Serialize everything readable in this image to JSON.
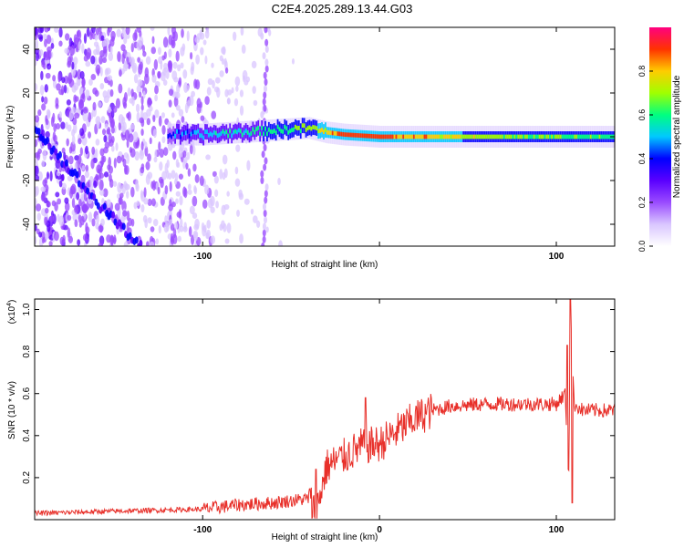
{
  "title": "C2E4.2025.289.13.44.G03",
  "chart_data": [
    {
      "type": "heatmap",
      "xlabel": "Height of straight line (km)",
      "ylabel": "Frequency (Hz)",
      "xlim": [
        -195,
        133
      ],
      "ylim": [
        -50,
        50
      ],
      "xticks": [
        -100,
        0,
        100
      ],
      "xtick_labels": [
        "-100",
        "",
        "100"
      ],
      "yticks": [
        -40,
        -20,
        0,
        20,
        40
      ],
      "ytick_labels": [
        "-40",
        "-20",
        "0",
        "20",
        "40"
      ],
      "colorbar": {
        "label": "Normalized spectral amplitude",
        "range": [
          0.0,
          1.0
        ],
        "ticks": [
          0.0,
          0.2,
          0.4,
          0.6,
          0.8
        ],
        "tick_labels": [
          "0.0",
          "0.2",
          "0.4",
          "0.6",
          "0.8"
        ],
        "colors": [
          "#ffffff",
          "#d9c6ff",
          "#9a4bff",
          "#5a00ff",
          "#0000ff",
          "#00c8ff",
          "#00ff80",
          "#a0ff00",
          "#ffcc00",
          "#ff3300",
          "#ff0080"
        ]
      },
      "ridge": {
        "x": [
          -120,
          -100,
          -80,
          -60,
          -40,
          -30,
          -20,
          0,
          20,
          60,
          100,
          133
        ],
        "frequency": [
          1,
          1,
          2,
          3,
          4,
          2,
          1,
          0,
          0,
          0,
          0,
          0
        ],
        "amplitude": [
          0.4,
          0.5,
          0.55,
          0.6,
          0.7,
          0.8,
          0.9,
          0.9,
          0.85,
          0.7,
          0.65,
          0.6
        ]
      },
      "diagonal_track": {
        "x": [
          -195,
          -175,
          -160,
          -145,
          -135
        ],
        "frequency": [
          5,
          -15,
          -30,
          -42,
          -50
        ]
      },
      "noise_extent_x": [
        -195,
        -40
      ],
      "vertical_streak_x": [
        -65
      ]
    },
    {
      "type": "line",
      "xlabel": "Height of straight line (km)",
      "ylabel": "SNR (10 * v/v)",
      "y_multiplier": "(x10",
      "y_exponent": "4",
      "y_multiplier_close": ")",
      "xlim": [
        -195,
        133
      ],
      "ylim": [
        0,
        1.05
      ],
      "xticks": [
        -100,
        0,
        100
      ],
      "xtick_labels": [
        "-100",
        "0",
        "100"
      ],
      "yticks": [
        0.2,
        0.4,
        0.6,
        0.8,
        1.0
      ],
      "ytick_labels": [
        "0.2",
        "0.4",
        "0.6",
        "0.8",
        "1.0"
      ],
      "color": "#e8302a",
      "series": [
        {
          "x": [
            -195,
            -150,
            -100,
            -80,
            -60,
            -40,
            -36,
            -30,
            -20,
            -10,
            0,
            10,
            20,
            30,
            40,
            60,
            80,
            100,
            105,
            107,
            108,
            110,
            115,
            133
          ],
          "values": [
            0.03,
            0.04,
            0.05,
            0.07,
            0.08,
            0.1,
            0.03,
            0.25,
            0.3,
            0.35,
            0.36,
            0.42,
            0.48,
            0.52,
            0.54,
            0.55,
            0.55,
            0.55,
            0.6,
            0.2,
            1.03,
            0.55,
            0.52,
            0.52
          ]
        }
      ],
      "spikes": [
        {
          "x": -36,
          "value": 0.24
        },
        {
          "x": -8,
          "value": 0.58
        },
        {
          "x": 106,
          "value": 0.83
        },
        {
          "x": 108,
          "value": 1.05
        },
        {
          "x": 109,
          "value": 0.08
        }
      ]
    }
  ]
}
